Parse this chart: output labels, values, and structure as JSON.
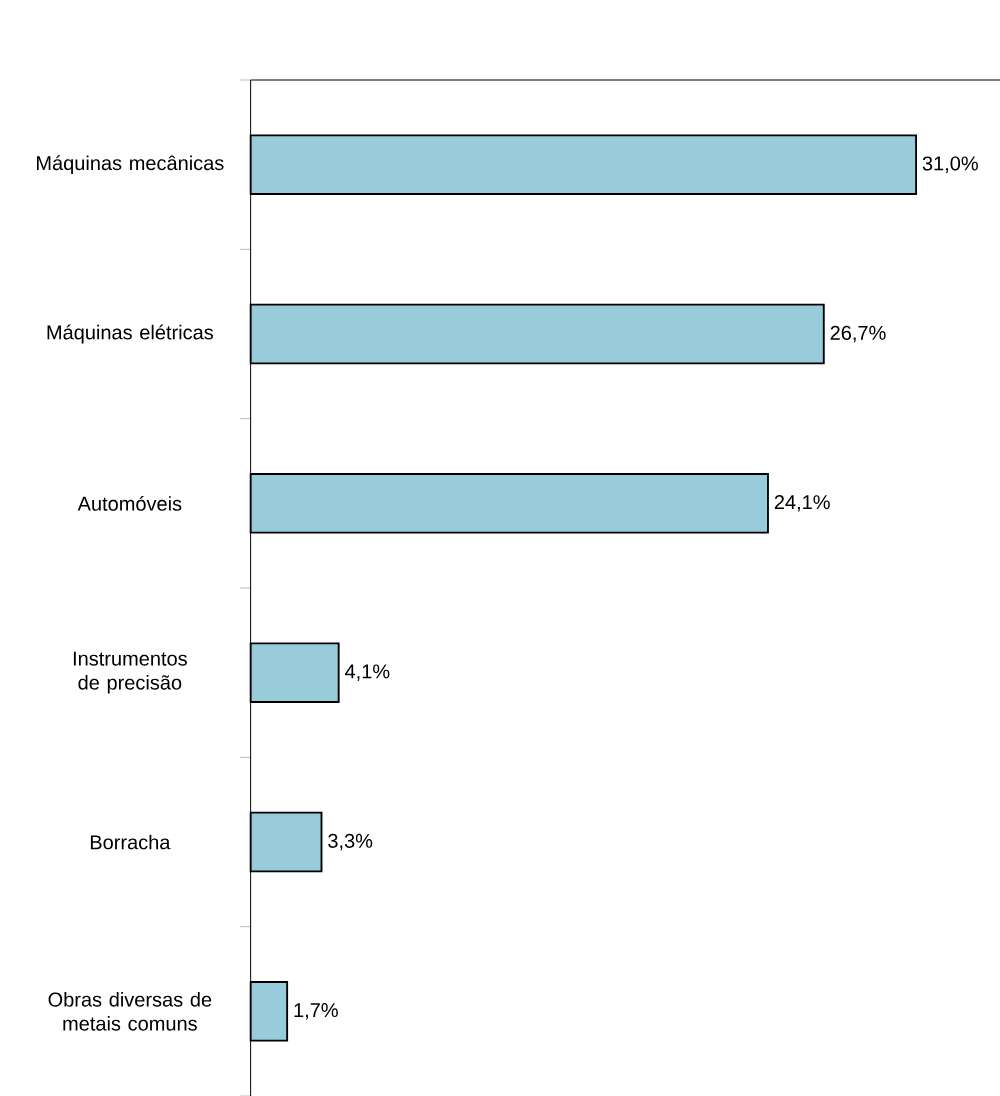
{
  "chart_data": {
    "type": "bar",
    "orientation": "horizontal",
    "categories": [
      "Máquinas mecânicas",
      "Máquinas elétricas",
      "Automóveis",
      "Instrumentos de precisão",
      "Borracha",
      "Obras diversas de metais comuns"
    ],
    "values": [
      31.0,
      26.7,
      24.1,
      4.1,
      3.3,
      1.7
    ],
    "value_labels": [
      "31,0%",
      "26,7%",
      "24,1%",
      "4,1%",
      "3,3%",
      "1,7%"
    ],
    "color": "#99ccdb"
  }
}
